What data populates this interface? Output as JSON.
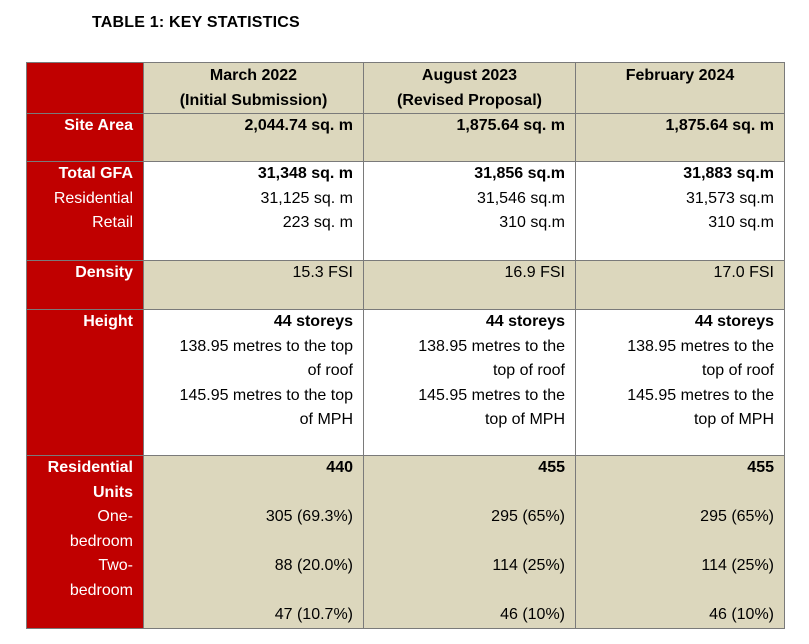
{
  "title": "TABLE 1: KEY STATISTICS",
  "columns": [
    {
      "line1": "March 2022",
      "line2": "(Initial Submission)"
    },
    {
      "line1": "August 2023",
      "line2": "(Revised Proposal)"
    },
    {
      "line1": "February 2024",
      "line2": ""
    }
  ],
  "site_area": {
    "label": "Site Area",
    "values": [
      "2,044.74 sq. m",
      "1,875.64 sq. m",
      "1,875.64 sq. m"
    ]
  },
  "gfa": {
    "label_total": "Total GFA",
    "label_residential": "Residential",
    "label_retail": "Retail",
    "total": [
      "31,348 sq. m",
      "31,856 sq.m",
      "31,883 sq.m"
    ],
    "residential": [
      "31,125 sq. m",
      "31,546 sq.m",
      "31,573 sq.m"
    ],
    "retail": [
      "223 sq. m",
      "310 sq.m",
      "310 sq.m"
    ]
  },
  "density": {
    "label": "Density",
    "values": [
      "15.3 FSI",
      "16.9 FSI",
      "17.0 FSI"
    ]
  },
  "height": {
    "label": "Height",
    "cols": [
      {
        "storeys": "44 storeys",
        "lines": [
          "138.95 metres to the top",
          "of roof",
          "145.95 metres to the top",
          "of MPH"
        ]
      },
      {
        "storeys": "44 storeys",
        "lines": [
          "138.95 metres to the",
          "top of roof",
          "145.95 metres to the",
          "top of MPH"
        ]
      },
      {
        "storeys": "44 storeys",
        "lines": [
          "138.95 metres to the",
          "top of roof",
          "145.95 metres to the",
          "top of MPH"
        ]
      }
    ]
  },
  "units": {
    "label_lines": [
      "Residential",
      "Units"
    ],
    "sub_lines": [
      "One-",
      "bedroom",
      "Two-",
      "bedroom"
    ],
    "totals": [
      "440",
      "455",
      "455"
    ],
    "one_bedroom": [
      "305 (69.3%)",
      "295 (65%)",
      "295 (65%)"
    ],
    "two_bedroom": [
      "88 (20.0%)",
      "114 (25%)",
      "114 (25%)"
    ],
    "other": [
      "47 (10.7%)",
      "46 (10%)",
      "46 (10%)"
    ]
  }
}
